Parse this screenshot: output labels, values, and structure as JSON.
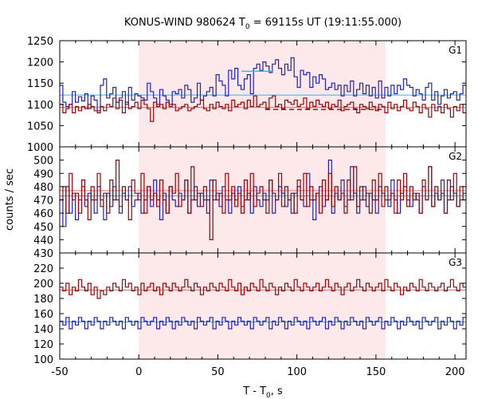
{
  "chart_data": {
    "type": "line",
    "title": "KONUS-WIND 980624 T",
    "title_sub": "0",
    "title_rest": " = 69115s UT (19:11:55.000)",
    "xlabel": "T - T",
    "xlabel_sub": "0",
    "xlabel_rest": ", s",
    "ylabel": "counts / sec",
    "xlim": [
      -50,
      207
    ],
    "xticks": [
      "-50",
      "0",
      "50",
      "100",
      "150",
      "200"
    ],
    "highlight_interval": [
      0,
      156
    ],
    "colors": {
      "red_series": "#a00000",
      "blue_series": "#2020c0",
      "red_bg": "#ff6e6e",
      "blue_bg": "#40b0e0",
      "highlight": "#fde8ea"
    },
    "panels": [
      {
        "label": "G1",
        "ylim": [
          1000,
          1250
        ],
        "yticks": [
          "1000",
          "1050",
          "1100",
          "1150",
          "1200",
          "1250"
        ],
        "series": [
          {
            "color": "blue",
            "values": [
              1145,
              1105,
              1095,
              1100,
              1130,
              1105,
              1118,
              1108,
              1125,
              1090,
              1120,
              1110,
              1085,
              1145,
              1160,
              1115,
              1125,
              1140,
              1105,
              1115,
              1130,
              1100,
              1140,
              1110,
              1125,
              1120,
              1115,
              1110,
              1150,
              1130,
              1115,
              1100,
              1135,
              1120,
              1110,
              1100,
              1130,
              1125,
              1135,
              1115,
              1145,
              1135,
              1105,
              1115,
              1150,
              1110,
              1120,
              1130,
              1140,
              1120,
              1170,
              1155,
              1145,
              1120,
              1180,
              1160,
              1185,
              1145,
              1135,
              1160,
              1170,
              1125,
              1185,
              1195,
              1180,
              1200,
              1190,
              1175,
              1195,
              1205,
              1185,
              1170,
              1195,
              1180,
              1210,
              1165,
              1140,
              1180,
              1170,
              1175,
              1140,
              1165,
              1150,
              1170,
              1160,
              1135,
              1140,
              1150,
              1135,
              1145,
              1120,
              1145,
              1130,
              1155,
              1120,
              1135,
              1150,
              1125,
              1145,
              1120,
              1140,
              1115,
              1155,
              1115,
              1140,
              1120,
              1145,
              1125,
              1145,
              1135,
              1160,
              1145,
              1140,
              1120,
              1135,
              1125,
              1110,
              1140,
              1150,
              1110,
              1130,
              1100,
              1120,
              1135,
              1115,
              1125,
              1130,
              1110,
              1125,
              1145
            ]
          },
          {
            "color": "red",
            "values": [
              1100,
              1080,
              1090,
              1100,
              1080,
              1095,
              1085,
              1095,
              1090,
              1100,
              1095,
              1085,
              1080,
              1095,
              1085,
              1100,
              1095,
              1115,
              1090,
              1110,
              1080,
              1105,
              1090,
              1095,
              1105,
              1090,
              1110,
              1100,
              1090,
              1060,
              1105,
              1095,
              1100,
              1090,
              1105,
              1095,
              1100,
              1085,
              1090,
              1095,
              1100,
              1085,
              1090,
              1095,
              1100,
              1110,
              1090,
              1085,
              1100,
              1090,
              1105,
              1095,
              1090,
              1100,
              1085,
              1110,
              1095,
              1100,
              1105,
              1090,
              1110,
              1095,
              1120,
              1095,
              1100,
              1105,
              1090,
              1115,
              1120,
              1095,
              1100,
              1090,
              1110,
              1105,
              1100,
              1110,
              1095,
              1100,
              1115,
              1090,
              1105,
              1095,
              1110,
              1100,
              1095,
              1105,
              1090,
              1100,
              1095,
              1110,
              1085,
              1095,
              1100,
              1105,
              1090,
              1080,
              1100,
              1095,
              1090,
              1105,
              1095,
              1085,
              1100,
              1095,
              1080,
              1105,
              1090,
              1100,
              1085,
              1095,
              1110,
              1090,
              1085,
              1105,
              1095,
              1080,
              1100,
              1090,
              1070,
              1100,
              1085,
              1095,
              1080,
              1100,
              1090,
              1070,
              1095,
              1085,
              1100,
              1080
            ]
          }
        ],
        "background": [
          {
            "color": "blue",
            "value": 1122
          },
          {
            "color": "red",
            "value": 1093
          }
        ],
        "fit": [
          {
            "color": "blue",
            "x": [
              65,
              85
            ],
            "value": 1178
          },
          {
            "color": "red",
            "x": [
              80,
              155
            ],
            "value": 1088,
            "dashed": true
          }
        ]
      },
      {
        "label": "G2",
        "ylim": [
          430,
          510
        ],
        "yticks": [
          "430",
          "440",
          "450",
          "460",
          "470",
          "480",
          "490",
          "500"
        ],
        "series": [
          {
            "color": "blue",
            "values": [
              470,
              450,
              480,
              460,
              475,
              455,
              470,
              480,
              465,
              475,
              470,
              460,
              480,
              470,
              455,
              475,
              465,
              480,
              470,
              460,
              475,
              470,
              480,
              465,
              470,
              475,
              460,
              470,
              480,
              465,
              485,
              470,
              455,
              475,
              460,
              480,
              470,
              465,
              475,
              470,
              485,
              460,
              470,
              480,
              465,
              475,
              470,
              460,
              485,
              470,
              475,
              465,
              480,
              470,
              460,
              475,
              470,
              480,
              465,
              470,
              475,
              460,
              480,
              470,
              465,
              475,
              470,
              485,
              460,
              470,
              480,
              475,
              465,
              470,
              460,
              475,
              480,
              470,
              465,
              490,
              470,
              455,
              475,
              480,
              465,
              470,
              500,
              460,
              475,
              470,
              485,
              465,
              470,
              495,
              475,
              460,
              470,
              480,
              465,
              475,
              470,
              460,
              480,
              475,
              470,
              465,
              485,
              470,
              460,
              475,
              480,
              470,
              465,
              475,
              470,
              460,
              480,
              470,
              495,
              465,
              475,
              470,
              485,
              460,
              470,
              480,
              475,
              465,
              470,
              475
            ]
          },
          {
            "color": "red",
            "values": [
              470,
              480,
              460,
              490,
              470,
              475,
              460,
              485,
              470,
              455,
              480,
              470,
              490,
              465,
              475,
              460,
              485,
              470,
              500,
              465,
              480,
              470,
              455,
              485,
              475,
              470,
              490,
              460,
              480,
              470,
              475,
              465,
              485,
              470,
              460,
              480,
              475,
              490,
              465,
              470,
              485,
              460,
              495,
              470,
              475,
              465,
              480,
              470,
              440,
              485,
              470,
              475,
              460,
              490,
              470,
              480,
              465,
              475,
              460,
              485,
              470,
              490,
              465,
              475,
              480,
              470,
              460,
              485,
              475,
              470,
              490,
              465,
              480,
              470,
              475,
              460,
              485,
              470,
              490,
              465,
              480,
              470,
              475,
              460,
              485,
              470,
              490,
              465,
              480,
              470,
              475,
              460,
              485,
              470,
              495,
              465,
              480,
              470,
              475,
              460,
              485,
              470,
              490,
              465,
              480,
              470,
              475,
              460,
              485,
              470,
              490,
              465,
              480,
              470,
              475,
              460,
              485,
              470,
              495,
              465,
              480,
              470,
              475,
              460,
              485,
              470,
              490,
              465,
              480,
              470
            ]
          }
        ],
        "background": [
          {
            "color": "blue",
            "value": 473
          },
          {
            "color": "red",
            "value": 477
          }
        ]
      },
      {
        "label": "G3",
        "ylim": [
          100,
          240
        ],
        "yticks": [
          "100",
          "120",
          "140",
          "160",
          "180",
          "200",
          "220"
        ],
        "series": [
          {
            "color": "red",
            "values": [
              195,
              190,
              200,
              185,
              195,
              190,
              205,
              195,
              190,
              200,
              185,
              195,
              180,
              190,
              185,
              195,
              190,
              200,
              195,
              190,
              205,
              195,
              200,
              190,
              195,
              185,
              200,
              190,
              195,
              200,
              190,
              195,
              185,
              200,
              195,
              190,
              200,
              195,
              190,
              195,
              205,
              195,
              190,
              200,
              195,
              185,
              195,
              190,
              200,
              195,
              190,
              200,
              195,
              190,
              205,
              195,
              190,
              200,
              185,
              195,
              190,
              200,
              195,
              190,
              205,
              195,
              190,
              200,
              195,
              185,
              195,
              190,
              200,
              195,
              190,
              205,
              195,
              190,
              200,
              195,
              190,
              195,
              200,
              190,
              195,
              205,
              195,
              190,
              200,
              195,
              185,
              195,
              200,
              190,
              195,
              205,
              195,
              190,
              200,
              195,
              190,
              195,
              200,
              190,
              205,
              195,
              190,
              200,
              195,
              185,
              195,
              190,
              200,
              195,
              190,
              205,
              195,
              190,
              200,
              195,
              190,
              195,
              200,
              190,
              195,
              205,
              195,
              190,
              200,
              195
            ]
          },
          {
            "color": "blue",
            "values": [
              150,
              145,
              155,
              140,
              150,
              145,
              155,
              150,
              140,
              150,
              145,
              155,
              150,
              140,
              150,
              145,
              155,
              150,
              145,
              150,
              140,
              155,
              150,
              145,
              150,
              140,
              155,
              150,
              145,
              150,
              155,
              140,
              150,
              145,
              155,
              150,
              140,
              150,
              145,
              155,
              150,
              145,
              150,
              140,
              155,
              150,
              145,
              150,
              155,
              140,
              150,
              145,
              155,
              150,
              140,
              150,
              145,
              155,
              150,
              145,
              150,
              140,
              155,
              150,
              145,
              150,
              155,
              140,
              150,
              145,
              155,
              150,
              140,
              150,
              145,
              155,
              150,
              145,
              150,
              140,
              155,
              150,
              145,
              150,
              155,
              140,
              150,
              145,
              155,
              150,
              140,
              150,
              145,
              155,
              150,
              145,
              150,
              140,
              155,
              150,
              145,
              150,
              155,
              140,
              150,
              145,
              155,
              150,
              140,
              150,
              145,
              155,
              150,
              145,
              150,
              140,
              155,
              150,
              145,
              150,
              155,
              140,
              150,
              145,
              155,
              150,
              140,
              150,
              145,
              155
            ]
          }
        ],
        "background": [
          {
            "color": "red",
            "value": 191
          },
          {
            "color": "blue",
            "value": 149
          }
        ]
      }
    ]
  }
}
